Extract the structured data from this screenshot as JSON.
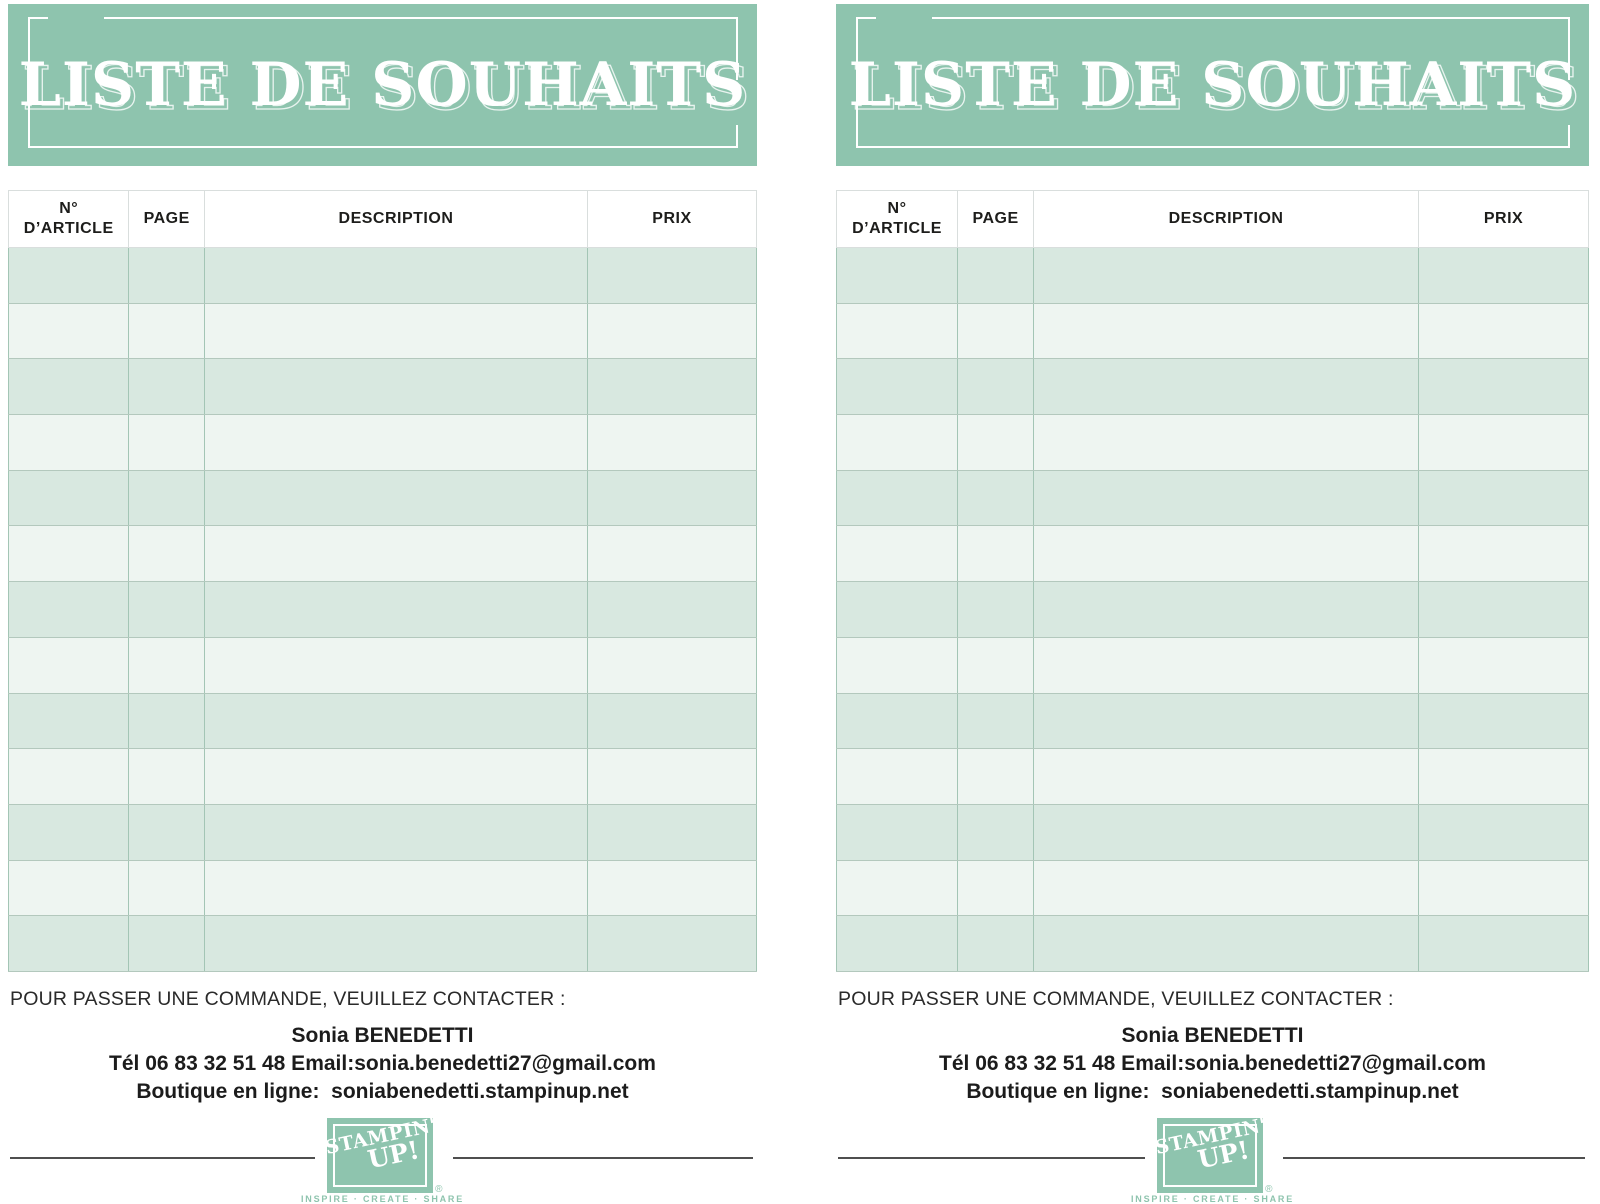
{
  "panel": {
    "title": "LISTE DE SOUHAITS",
    "table": {
      "col_article_line1": "N°",
      "col_article_line2": "D’ARTICLE",
      "col_page": "PAGE",
      "col_description": "DESCRIPTION",
      "col_prix": "PRIX",
      "empty_row_count": 13
    },
    "footer": {
      "contact_intro": "POUR PASSER UNE COMMANDE, VEUILLEZ CONTACTER :",
      "contact_name": "Sonia BENEDETTI",
      "contact_phone_email": "Tél 06 83 32 51 48 Email:sonia.benedetti27@gmail.com",
      "contact_shop": "Boutique en ligne:  soniabenedetti.stampinup.net"
    },
    "logo": {
      "brand_line1": "STAMPIN'",
      "brand_line2": "UP!",
      "registered": "®",
      "tagline": "INSPIRE · CREATE · SHARE"
    }
  },
  "colors": {
    "banner_teal": "#8ec4ae",
    "row_dark": "#d8e8e0",
    "row_light": "#eef5f1",
    "cell_border_teal": "#a3c5b5",
    "row_border_gray_green": "#b3c8bd",
    "header_border_gray": "#d9dedd",
    "divider_gray": "#4f4f4f",
    "text_dark": "#1d1d1b",
    "title_white": "#ffffff"
  }
}
